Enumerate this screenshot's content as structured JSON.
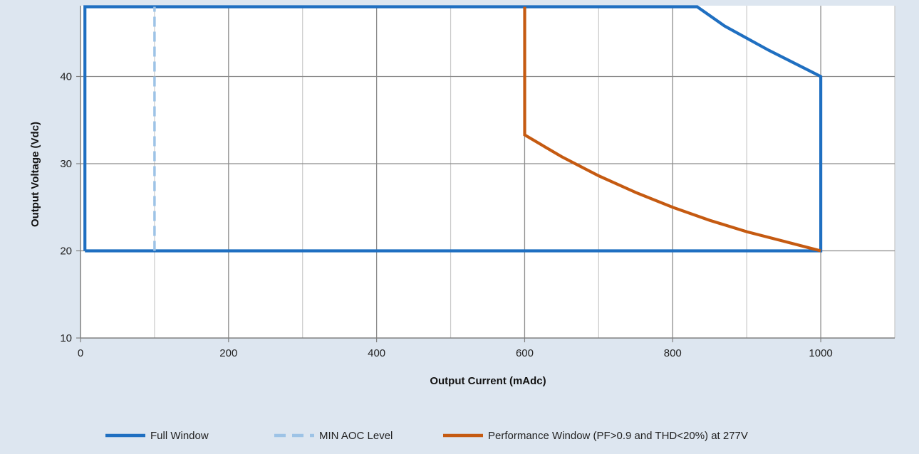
{
  "chart_data": {
    "type": "line",
    "title": "",
    "xlabel": "Output Current (mAdc)",
    "ylabel": "Output Voltage (Vdc)",
    "xlim": [
      0,
      1100
    ],
    "ylim": [
      10,
      48
    ],
    "x_ticks": [
      0,
      200,
      400,
      600,
      800,
      1000
    ],
    "y_ticks": [
      10,
      20,
      30,
      40
    ],
    "x_minor_gridlines": [
      100,
      300,
      500,
      700,
      900,
      1100
    ],
    "grid": true,
    "legend_position": "bottom",
    "series": [
      {
        "name": "Full Window",
        "color": "#1f6fc1",
        "style": "solid",
        "points": [
          [
            6,
            20
          ],
          [
            6,
            48
          ],
          [
            833,
            48
          ],
          [
            870,
            45.8
          ],
          [
            930,
            43
          ],
          [
            1000,
            40
          ],
          [
            1000,
            20
          ],
          [
            6,
            20
          ]
        ]
      },
      {
        "name": "MIN AOC Level",
        "color": "#9dc3e6",
        "style": "dashed",
        "points": [
          [
            100,
            20
          ],
          [
            100,
            48
          ]
        ]
      },
      {
        "name": "Performance Window (PF>0.9 and THD<20%) at 277V",
        "color": "#c55a11",
        "style": "solid",
        "points": [
          [
            600,
            48
          ],
          [
            600,
            33.3
          ],
          [
            650,
            30.8
          ],
          [
            700,
            28.6
          ],
          [
            750,
            26.7
          ],
          [
            800,
            25
          ],
          [
            850,
            23.5
          ],
          [
            900,
            22.2
          ],
          [
            950,
            21.1
          ],
          [
            1000,
            20
          ]
        ]
      }
    ]
  }
}
